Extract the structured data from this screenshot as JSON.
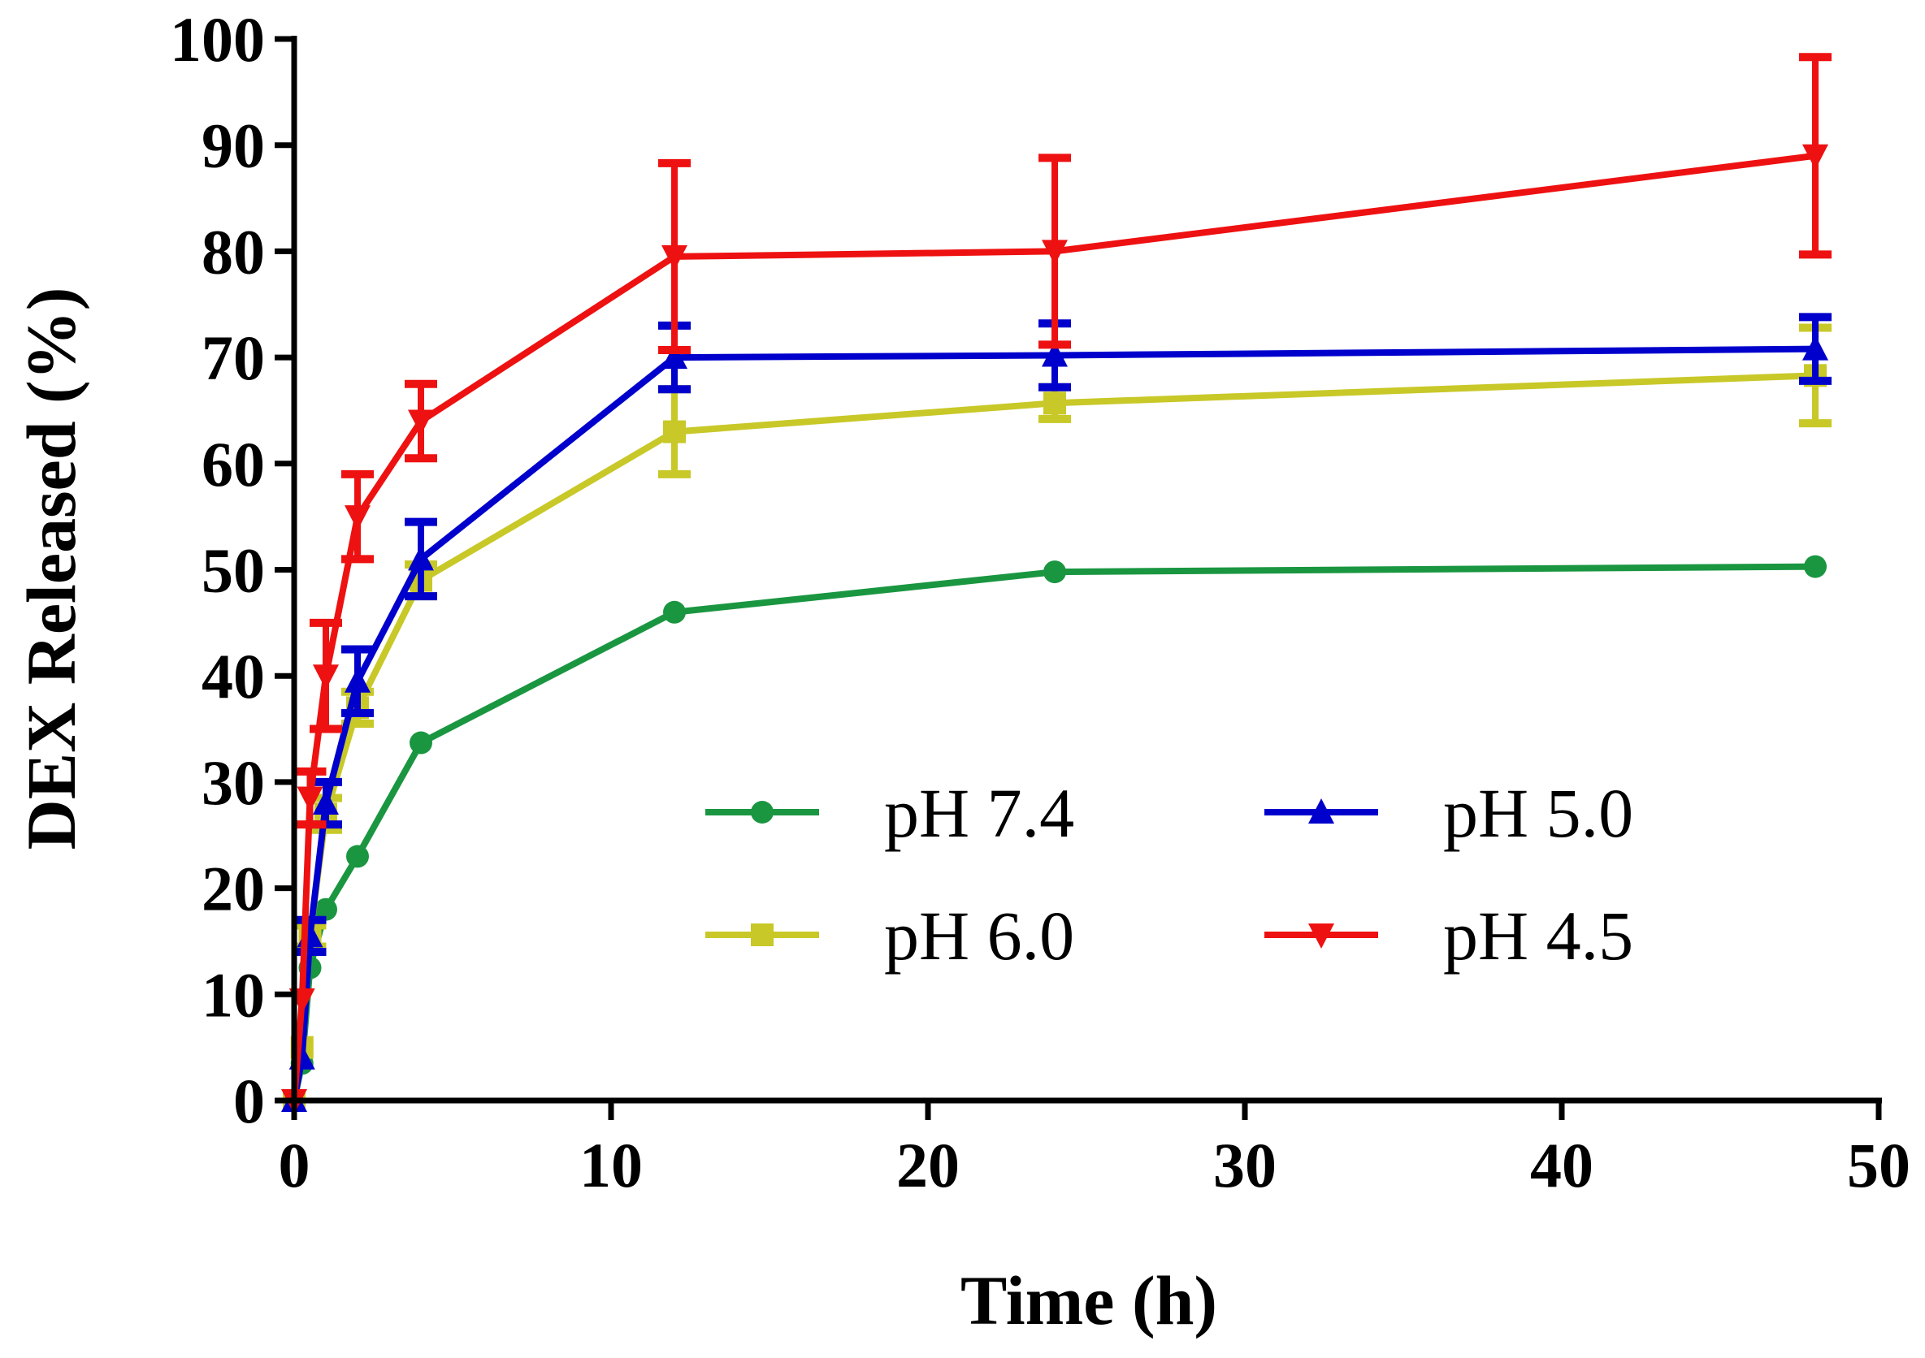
{
  "chart_data": {
    "type": "line",
    "title": "",
    "xlabel": "Time (h)",
    "ylabel": "DEX Released (%)",
    "xlim": [
      0,
      50
    ],
    "ylim": [
      0,
      100
    ],
    "xticks": [
      0,
      10,
      20,
      30,
      40,
      50
    ],
    "yticks": [
      0,
      10,
      20,
      30,
      40,
      50,
      60,
      70,
      80,
      90,
      100
    ],
    "grid": false,
    "legend_position": "lower-right",
    "x": [
      0,
      0.25,
      0.5,
      1,
      2,
      4,
      12,
      24,
      48
    ],
    "series": [
      {
        "name": "pH 7.4",
        "color": "#1a9641",
        "marker": "circle",
        "values": [
          0,
          3.5,
          12.5,
          18,
          23,
          33.7,
          46,
          49.8,
          50.3
        ],
        "errors": [
          0,
          0,
          0,
          0,
          0,
          0,
          0,
          0,
          0
        ]
      },
      {
        "name": "pH 6.0",
        "color": "#c8c828",
        "marker": "square",
        "values": [
          0,
          5,
          15.5,
          27,
          37,
          49,
          63,
          65.7,
          68.3
        ],
        "errors": [
          0,
          0,
          1,
          1.5,
          1.5,
          1.5,
          4,
          1.5,
          4.5
        ]
      },
      {
        "name": "pH 5.0",
        "color": "#0000cc",
        "marker": "triangle-up",
        "values": [
          0,
          4,
          15.5,
          28,
          39.5,
          51,
          70,
          70.2,
          70.8
        ],
        "errors": [
          0,
          0,
          1.5,
          2,
          3,
          3.5,
          3,
          3,
          3
        ]
      },
      {
        "name": "pH 4.5",
        "color": "#ee1111",
        "marker": "triangle-down",
        "values": [
          0,
          9.5,
          28.5,
          40,
          55,
          64,
          79.5,
          80,
          89
        ],
        "errors": [
          0,
          0,
          2.5,
          5,
          4,
          3.5,
          8.8,
          8.8,
          9.3
        ]
      }
    ]
  }
}
